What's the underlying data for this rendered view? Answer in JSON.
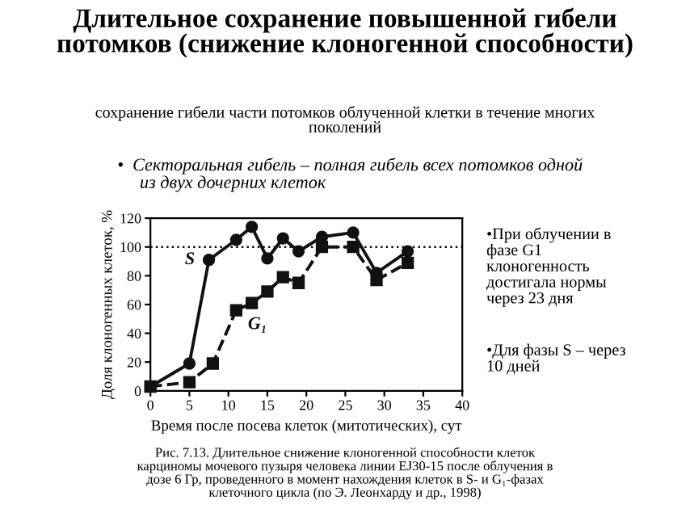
{
  "chart_data": {
    "type": "line",
    "title": "Длительное сохранение повышенной гибели\nпотомков (снижение клоногенной способности)",
    "subtitle": "сохранение гибели части потомков облученной клетки в течение многих\nпоколений",
    "xlabel": "Время после посева клеток (митотических), сут",
    "ylabel": "Доля клоногенных клеток, %",
    "xlim": [
      0,
      40
    ],
    "xticks": [
      0,
      5,
      10,
      15,
      20,
      25,
      30,
      35,
      40
    ],
    "ylim": [
      0,
      120
    ],
    "yticks": [
      0,
      20,
      40,
      60,
      80,
      100,
      120
    ],
    "grid": false,
    "legend": false,
    "series": [
      {
        "name": "S",
        "color": "#111111",
        "marker": "circle",
        "line_style": "solid",
        "x": [
          0,
          5,
          7.5,
          11,
          13,
          15,
          17,
          19,
          22,
          26,
          29,
          33
        ],
        "values": [
          3,
          19,
          91,
          105,
          114,
          92,
          106,
          97,
          107,
          110,
          82,
          97
        ]
      },
      {
        "name": "G₁",
        "color": "#111111",
        "marker": "square",
        "line_style": "dashed",
        "x": [
          0,
          5,
          8,
          11,
          13,
          15,
          17,
          19,
          22,
          26,
          29,
          33
        ],
        "values": [
          3,
          6,
          19,
          56,
          61,
          69,
          79,
          75,
          100,
          100,
          77,
          89
        ]
      }
    ],
    "ref_lines": [
      {
        "axis": "y",
        "value": 100,
        "label": null,
        "line_style": "dotted",
        "color": "#111111"
      }
    ],
    "annotations": [
      "•  Секторальная гибель – полная гибель всех потомков одной\n     из двух дочерних клеток",
      "•При облучении в\nфазе G1\nклоногенность\nдостигала нормы\nчерез 23 дня",
      "•Для фазы S – через\n10 дней",
      "Рис. 7.13. Длительное снижение клоногенной способности клеток\nкарциномы мочевого пузыря человека линии EJ30-15 после облучения в\nдозе 6 Гр, проведенного в момент нахождения клеток в S- и G₁-фазах\nклеточного цикла (по Э. Леонхарду и др., 1998)"
    ]
  }
}
